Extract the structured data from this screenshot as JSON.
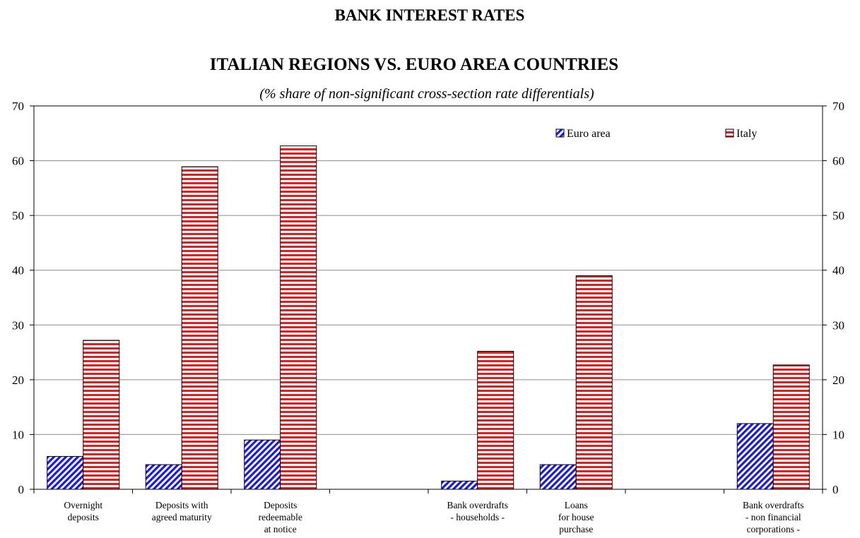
{
  "chart_data": {
    "type": "bar",
    "title": "BANK INTEREST RATES",
    "subtitle": "ITALIAN REGIONS VS. EURO AREA COUNTRIES",
    "note": "(% share of non-significant cross-section rate differentials)",
    "categories": [
      [
        "Overnight",
        "deposits"
      ],
      [
        "Deposits with",
        "agreed maturity"
      ],
      [
        "Deposits",
        "redeemable",
        "at notice"
      ],
      [],
      [
        "Bank overdrafts",
        "- households -"
      ],
      [
        "Loans",
        "for house",
        "purchase"
      ],
      [],
      [
        "Bank overdrafts",
        "- non financial",
        "corporations -"
      ]
    ],
    "series": [
      {
        "name": "Euro area",
        "values": [
          6.0,
          4.5,
          9.0,
          null,
          1.5,
          4.5,
          null,
          12.0
        ],
        "color": "#1a1adc"
      },
      {
        "name": "Italy",
        "values": [
          27.2,
          58.9,
          62.7,
          null,
          25.2,
          39.0,
          null,
          22.7
        ],
        "color": "#e02020"
      }
    ],
    "ylim": [
      0,
      70
    ],
    "yticks": [
      0,
      10,
      20,
      30,
      40,
      50,
      60,
      70
    ],
    "grid": true,
    "secondary_y_axis": true,
    "legend_position": "top-right"
  }
}
